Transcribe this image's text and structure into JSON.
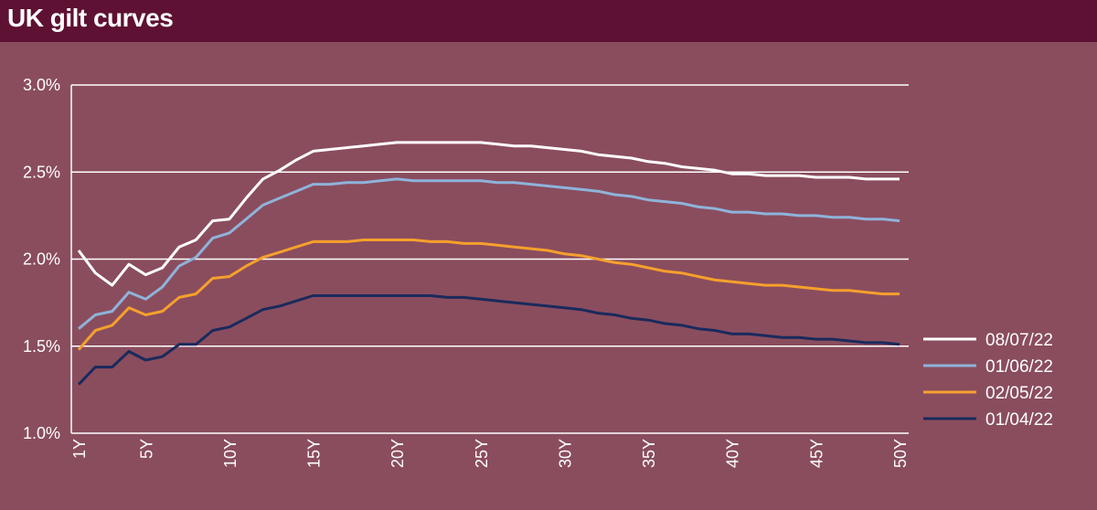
{
  "title": "UK gilt curves",
  "colors": {
    "background": "#8a4d5e",
    "header": "#5e1132",
    "grid": "#ffffff"
  },
  "chart_data": {
    "type": "line",
    "title": "UK gilt curves",
    "xlabel": "",
    "ylabel": "",
    "ylim": [
      1.0,
      3.0
    ],
    "yticks": [
      1.0,
      1.5,
      2.0,
      2.5,
      3.0
    ],
    "ytick_labels": [
      "1.0%",
      "1.5%",
      "2.0%",
      "2.5%",
      "3.0%"
    ],
    "x": [
      1,
      2,
      3,
      4,
      5,
      6,
      7,
      8,
      9,
      10,
      11,
      12,
      13,
      14,
      15,
      16,
      17,
      18,
      19,
      20,
      21,
      22,
      23,
      24,
      25,
      26,
      27,
      28,
      29,
      30,
      31,
      32,
      33,
      34,
      35,
      36,
      37,
      38,
      39,
      40,
      41,
      42,
      43,
      44,
      45,
      46,
      47,
      48,
      49,
      50
    ],
    "xticks": [
      1,
      5,
      10,
      15,
      20,
      25,
      30,
      35,
      40,
      45,
      50
    ],
    "xtick_labels": [
      "1Y",
      "5Y",
      "10Y",
      "15Y",
      "20Y",
      "25Y",
      "30Y",
      "35Y",
      "40Y",
      "45Y",
      "50Y"
    ],
    "grid": "horizontal",
    "legend_position": "right",
    "series": [
      {
        "name": "08/07/22",
        "color": "#ffffff",
        "values": [
          2.05,
          1.92,
          1.85,
          1.97,
          1.91,
          1.95,
          2.07,
          2.11,
          2.22,
          2.23,
          2.35,
          2.46,
          2.51,
          2.57,
          2.62,
          2.63,
          2.64,
          2.65,
          2.66,
          2.67,
          2.67,
          2.67,
          2.67,
          2.67,
          2.67,
          2.66,
          2.65,
          2.65,
          2.64,
          2.63,
          2.62,
          2.6,
          2.59,
          2.58,
          2.56,
          2.55,
          2.53,
          2.52,
          2.51,
          2.49,
          2.49,
          2.48,
          2.48,
          2.48,
          2.47,
          2.47,
          2.47,
          2.46,
          2.46,
          2.46
        ]
      },
      {
        "name": "01/06/22",
        "color": "#8fb3d9",
        "values": [
          1.6,
          1.68,
          1.7,
          1.81,
          1.77,
          1.84,
          1.96,
          2.01,
          2.12,
          2.15,
          2.23,
          2.31,
          2.35,
          2.39,
          2.43,
          2.43,
          2.44,
          2.44,
          2.45,
          2.46,
          2.45,
          2.45,
          2.45,
          2.45,
          2.45,
          2.44,
          2.44,
          2.43,
          2.42,
          2.41,
          2.4,
          2.39,
          2.37,
          2.36,
          2.34,
          2.33,
          2.32,
          2.3,
          2.29,
          2.27,
          2.27,
          2.26,
          2.26,
          2.25,
          2.25,
          2.24,
          2.24,
          2.23,
          2.23,
          2.22
        ]
      },
      {
        "name": "02/05/22",
        "color": "#f5a02c",
        "values": [
          1.48,
          1.59,
          1.62,
          1.72,
          1.68,
          1.7,
          1.78,
          1.8,
          1.89,
          1.9,
          1.96,
          2.01,
          2.04,
          2.07,
          2.1,
          2.1,
          2.1,
          2.11,
          2.11,
          2.11,
          2.11,
          2.1,
          2.1,
          2.09,
          2.09,
          2.08,
          2.07,
          2.06,
          2.05,
          2.03,
          2.02,
          2.0,
          1.98,
          1.97,
          1.95,
          1.93,
          1.92,
          1.9,
          1.88,
          1.87,
          1.86,
          1.85,
          1.85,
          1.84,
          1.83,
          1.82,
          1.82,
          1.81,
          1.8,
          1.8
        ]
      },
      {
        "name": "01/04/22",
        "color": "#1a2a5c",
        "values": [
          1.28,
          1.38,
          1.38,
          1.47,
          1.42,
          1.44,
          1.51,
          1.51,
          1.59,
          1.61,
          1.66,
          1.71,
          1.73,
          1.76,
          1.79,
          1.79,
          1.79,
          1.79,
          1.79,
          1.79,
          1.79,
          1.79,
          1.78,
          1.78,
          1.77,
          1.76,
          1.75,
          1.74,
          1.73,
          1.72,
          1.71,
          1.69,
          1.68,
          1.66,
          1.65,
          1.63,
          1.62,
          1.6,
          1.59,
          1.57,
          1.57,
          1.56,
          1.55,
          1.55,
          1.54,
          1.54,
          1.53,
          1.52,
          1.52,
          1.51
        ]
      }
    ]
  }
}
